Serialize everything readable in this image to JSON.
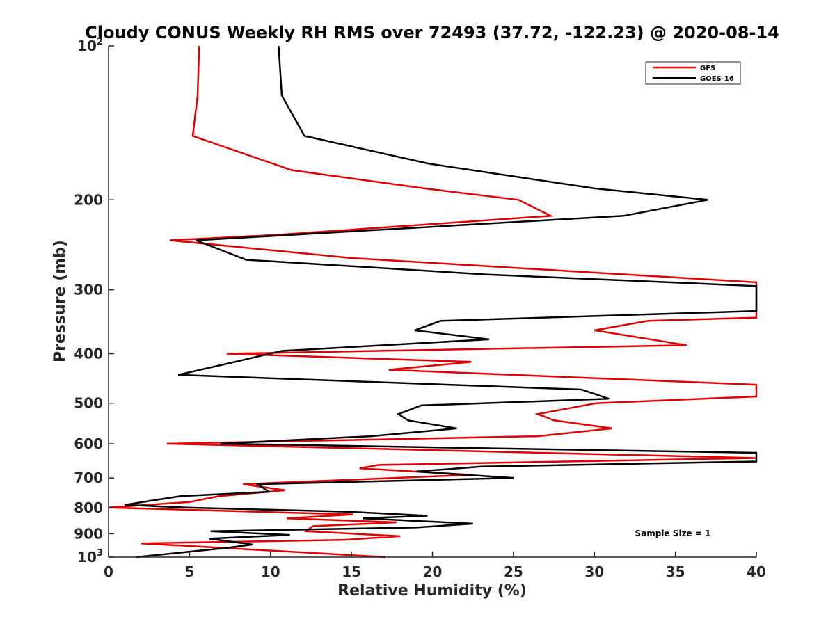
{
  "chart_data": {
    "type": "line",
    "title": "Cloudy CONUS Weekly RH RMS over 72493 (37.72, -122.23) @ 2020-08-14",
    "xlabel": "Relative Humidity (%)",
    "ylabel": "Pressure (mb)",
    "xlim": [
      0,
      40
    ],
    "ylim": [
      100,
      1000
    ],
    "yscale": "log",
    "y_reversed": true,
    "grid": false,
    "legend_position": "top-right",
    "x_ticks": [
      0,
      5,
      10,
      15,
      20,
      25,
      30,
      35,
      40
    ],
    "x_tick_labels": [
      "0",
      "5",
      "10",
      "15",
      "20",
      "25",
      "30",
      "35",
      "40"
    ],
    "y_ticks": [
      100,
      200,
      300,
      400,
      500,
      600,
      700,
      800,
      900,
      1000
    ],
    "y_tick_labels": [
      {
        "base": "10",
        "exp": "2"
      },
      {
        "base": "200",
        "exp": ""
      },
      {
        "base": "300",
        "exp": ""
      },
      {
        "base": "400",
        "exp": ""
      },
      {
        "base": "500",
        "exp": ""
      },
      {
        "base": "600",
        "exp": ""
      },
      {
        "base": "700",
        "exp": ""
      },
      {
        "base": "800",
        "exp": ""
      },
      {
        "base": "900",
        "exp": ""
      },
      {
        "base": "10",
        "exp": "3"
      }
    ],
    "annotation": "Sample Size = 1",
    "series": [
      {
        "name": "GFS",
        "color": "#e30000",
        "points": [
          [
            5.6,
            100
          ],
          [
            5.5,
            125
          ],
          [
            5.2,
            150
          ],
          [
            11.3,
            175
          ],
          [
            19.5,
            190
          ],
          [
            25.3,
            200
          ],
          [
            27.3,
            215
          ],
          [
            10.6,
            234
          ],
          [
            3.8,
            240
          ],
          [
            15.0,
            260
          ],
          [
            40.0,
            290
          ],
          [
            40.0,
            340
          ],
          [
            33.3,
            345
          ],
          [
            30.0,
            360
          ],
          [
            35.7,
            385
          ],
          [
            7.3,
            400
          ],
          [
            22.4,
            415
          ],
          [
            17.3,
            430
          ],
          [
            40.0,
            460
          ],
          [
            40.0,
            485
          ],
          [
            30.1,
            500
          ],
          [
            26.5,
            525
          ],
          [
            27.5,
            540
          ],
          [
            31.1,
            560
          ],
          [
            26.5,
            580
          ],
          [
            3.6,
            600
          ],
          [
            40.0,
            640
          ],
          [
            16.7,
            660
          ],
          [
            15.5,
            670
          ],
          [
            22.4,
            690
          ],
          [
            8.3,
            720
          ],
          [
            10.9,
            740
          ],
          [
            6.8,
            760
          ],
          [
            5.0,
            780
          ],
          [
            0.0,
            800
          ],
          [
            15.1,
            825
          ],
          [
            11.0,
            840
          ],
          [
            17.8,
            855
          ],
          [
            12.6,
            870
          ],
          [
            12.2,
            890
          ],
          [
            18.0,
            910
          ],
          [
            14.6,
            925
          ],
          [
            2.0,
            940
          ],
          [
            7.3,
            960
          ],
          [
            17.1,
            1000
          ]
        ]
      },
      {
        "name": "GOES-16",
        "color": "#000000",
        "points": [
          [
            10.5,
            100
          ],
          [
            10.7,
            125
          ],
          [
            12.1,
            150
          ],
          [
            19.8,
            170
          ],
          [
            30.0,
            190
          ],
          [
            37.0,
            200
          ],
          [
            31.8,
            215
          ],
          [
            5.4,
            240
          ],
          [
            8.5,
            262
          ],
          [
            23.4,
            280
          ],
          [
            40.0,
            295
          ],
          [
            40.0,
            330
          ],
          [
            20.5,
            345
          ],
          [
            18.9,
            360
          ],
          [
            23.5,
            375
          ],
          [
            10.7,
            395
          ],
          [
            7.8,
            415
          ],
          [
            4.3,
            440
          ],
          [
            29.2,
            470
          ],
          [
            30.9,
            490
          ],
          [
            19.3,
            505
          ],
          [
            17.9,
            525
          ],
          [
            18.5,
            540
          ],
          [
            21.5,
            560
          ],
          [
            16.2,
            580
          ],
          [
            6.9,
            600
          ],
          [
            40.0,
            625
          ],
          [
            40.0,
            650
          ],
          [
            23.0,
            665
          ],
          [
            19.0,
            680
          ],
          [
            25.0,
            700
          ],
          [
            9.2,
            720
          ],
          [
            9.9,
            745
          ],
          [
            4.4,
            760
          ],
          [
            1.0,
            790
          ],
          [
            4.8,
            800
          ],
          [
            14.8,
            815
          ],
          [
            19.7,
            830
          ],
          [
            15.7,
            840
          ],
          [
            22.5,
            860
          ],
          [
            19.0,
            875
          ],
          [
            6.3,
            890
          ],
          [
            11.2,
            905
          ],
          [
            6.2,
            920
          ],
          [
            8.9,
            945
          ],
          [
            7.2,
            960
          ],
          [
            1.7,
            1000
          ]
        ]
      }
    ]
  }
}
